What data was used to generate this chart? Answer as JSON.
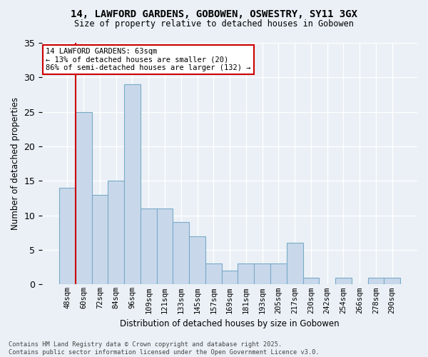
{
  "title": "14, LAWFORD GARDENS, GOBOWEN, OSWESTRY, SY11 3GX",
  "subtitle": "Size of property relative to detached houses in Gobowen",
  "xlabel": "Distribution of detached houses by size in Gobowen",
  "ylabel": "Number of detached properties",
  "bar_values": [
    14,
    25,
    13,
    15,
    29,
    11,
    11,
    9,
    7,
    3,
    2,
    3,
    3,
    3,
    6,
    1,
    0,
    1,
    0,
    1,
    1
  ],
  "bar_labels": [
    "48sqm",
    "60sqm",
    "72sqm",
    "84sqm",
    "96sqm",
    "109sqm",
    "121sqm",
    "133sqm",
    "145sqm",
    "157sqm",
    "169sqm",
    "181sqm",
    "193sqm",
    "205sqm",
    "217sqm",
    "230sqm",
    "242sqm",
    "254sqm",
    "266sqm",
    "278sqm",
    "290sqm"
  ],
  "bar_color": "#c8d8ea",
  "bar_edge_color": "#7aaac8",
  "bar_edge_width": 0.8,
  "marker_bin_index": 1,
  "marker_color": "#cc0000",
  "annotation_text": "14 LAWFORD GARDENS: 63sqm\n← 13% of detached houses are smaller (20)\n86% of semi-detached houses are larger (132) →",
  "annotation_box_facecolor": "#ffffff",
  "annotation_box_edgecolor": "#cc0000",
  "footer_text": "Contains HM Land Registry data © Crown copyright and database right 2025.\nContains public sector information licensed under the Open Government Licence v3.0.",
  "background_color": "#eaf0f6",
  "grid_color": "#ffffff",
  "ylim": [
    0,
    35
  ],
  "yticks": [
    0,
    5,
    10,
    15,
    20,
    25,
    30,
    35
  ]
}
